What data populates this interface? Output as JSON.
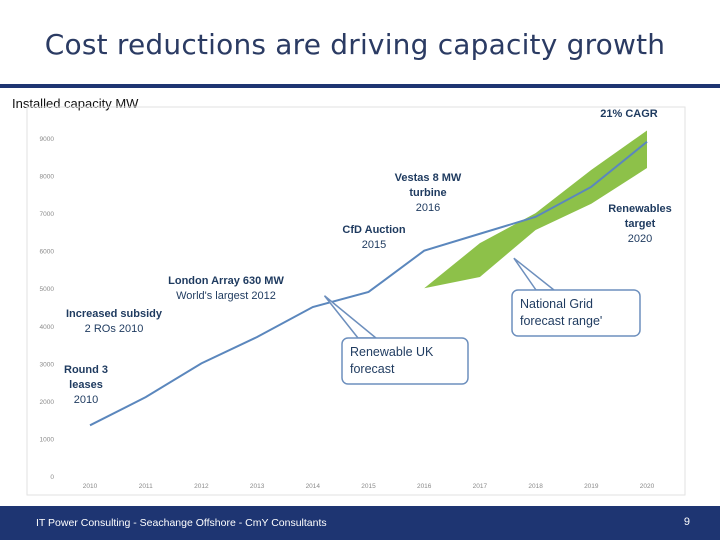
{
  "slide": {
    "title": "Cost reductions are driving capacity growth",
    "subtitle": "Installed capacity MW",
    "footer": "IT Power Consulting - Seachange Offshore - CmY Consultants",
    "page_number": "9"
  },
  "chart_data": {
    "type": "line",
    "x": [
      "2010",
      "2011",
      "2012",
      "2013",
      "2014",
      "2015",
      "2016",
      "2017",
      "2018",
      "2019",
      "2020"
    ],
    "ylim": [
      0,
      9000
    ],
    "yticks": [
      "0",
      "1000",
      "2000",
      "3000",
      "4000",
      "5000",
      "6000",
      "7000",
      "8000",
      "9000"
    ],
    "grid": false,
    "series": [
      {
        "values": [
          1350,
          2100,
          3000,
          3700,
          4500,
          4900,
          6000,
          6450,
          6900,
          7700,
          8900
        ]
      }
    ],
    "band": {
      "x": [
        "2015",
        "2016",
        "2017",
        "2018",
        "2019",
        "2020"
      ],
      "upper": [
        5000,
        5000,
        6200,
        7000,
        8150,
        9200
      ],
      "lower": [
        5000,
        5000,
        5300,
        6550,
        7250,
        8200
      ]
    },
    "annotations": [
      {
        "lines": [
          "Round 3",
          "leases",
          "2010"
        ]
      },
      {
        "lines": [
          "Increased subsidy",
          "2 ROs   2010"
        ]
      },
      {
        "lines": [
          "London Array 630 MW",
          "World's largest 2012"
        ]
      },
      {
        "lines": [
          "CfD Auction",
          "2015"
        ]
      },
      {
        "lines": [
          "Vestas 8 MW",
          "turbine",
          "2016"
        ]
      },
      {
        "lines": [
          "21% CAGR"
        ]
      },
      {
        "lines": [
          "Renewables",
          "target",
          "2020"
        ]
      }
    ],
    "callouts": [
      {
        "lines": [
          "Renewable UK",
          "forecast"
        ]
      },
      {
        "lines": [
          "National Grid",
          "forecast range'"
        ]
      }
    ],
    "colors": {
      "line": "#5b87bd",
      "band": "#8dc149",
      "callout_border": "#6d8fbd",
      "annotation_text": "#1e3a5f"
    }
  }
}
